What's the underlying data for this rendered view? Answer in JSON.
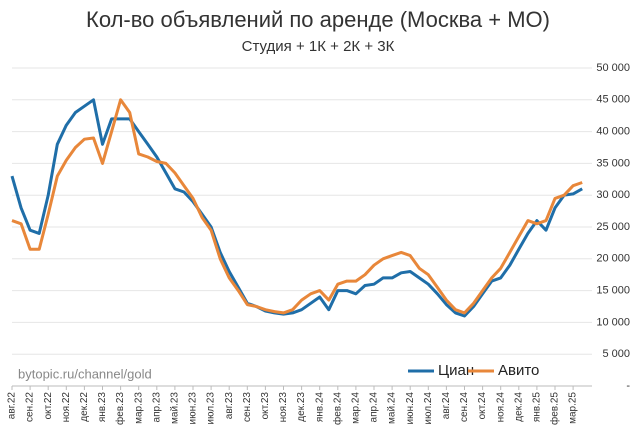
{
  "chart_data": {
    "type": "line",
    "title": "Кол-во объявлений по аренде (Москва + МО)",
    "subtitle": "Студия + 1К + 2К + 3К",
    "annotation": "bytopic.ru/channel/gold",
    "categories": [
      "авг.22",
      null,
      "сен.22",
      null,
      "окт.22",
      null,
      "ноя.22",
      null,
      "дек.22",
      null,
      "янв.23",
      null,
      "фев.23",
      null,
      "мар.23",
      null,
      "апр.23",
      null,
      "май.23",
      null,
      "июн.23",
      null,
      "июл.23",
      null,
      "авг.23",
      null,
      "сен.23",
      null,
      "окт.23",
      null,
      "ноя.23",
      null,
      "дек.23",
      null,
      "янв.24",
      null,
      "фев.24",
      null,
      "мар.24",
      null,
      "апр.24",
      null,
      "май.24",
      null,
      "июн.24",
      null,
      "июл.24",
      null,
      "авг.24",
      null,
      "сен.24",
      null,
      "окт.24",
      null,
      "ноя.24",
      null,
      "дек.24",
      null,
      "янв.25",
      null,
      "фев.25",
      null,
      "мар.25",
      null
    ],
    "series": [
      {
        "name": "Циан",
        "color": "#1f6ea8",
        "values": [
          33000,
          28000,
          24500,
          24000,
          30000,
          38000,
          41000,
          43000,
          44000,
          45000,
          38000,
          42000,
          42000,
          42000,
          40000,
          38000,
          36000,
          33500,
          31000,
          30500,
          29000,
          27000,
          25000,
          21000,
          18000,
          15500,
          13000,
          12500,
          11800,
          11500,
          11300,
          11500,
          12000,
          13000,
          14000,
          12000,
          15000,
          15000,
          14500,
          15800,
          16000,
          17000,
          17000,
          17800,
          18000,
          17000,
          16000,
          14500,
          12800,
          11500,
          11000,
          12500,
          14500,
          16500,
          17000,
          19000,
          21500,
          24000,
          26000,
          24500,
          28000,
          30000,
          30200,
          31000
        ]
      },
      {
        "name": "Авито",
        "color": "#e8873a",
        "values": [
          26000,
          25500,
          21500,
          21500,
          27000,
          33000,
          35500,
          37500,
          38800,
          39000,
          35000,
          40000,
          45000,
          43000,
          36500,
          36000,
          35300,
          35000,
          33500,
          31500,
          29500,
          26500,
          24500,
          20000,
          17000,
          15000,
          12800,
          12500,
          12000,
          11700,
          11500,
          12000,
          13500,
          14500,
          15000,
          13500,
          16000,
          16500,
          16500,
          17500,
          19000,
          20000,
          20500,
          21000,
          20500,
          18500,
          17500,
          15500,
          13500,
          12000,
          11500,
          13000,
          15000,
          17000,
          18500,
          21000,
          23500,
          26000,
          25500,
          26000,
          29500,
          30000,
          31500,
          32000
        ]
      }
    ],
    "ylim": [
      0,
      50000
    ],
    "yticks": [
      {
        "value": 0,
        "label": "-"
      },
      {
        "value": 5000,
        "label": "5 000"
      },
      {
        "value": 10000,
        "label": "10 000"
      },
      {
        "value": 15000,
        "label": "15 000"
      },
      {
        "value": 20000,
        "label": "20 000"
      },
      {
        "value": 25000,
        "label": "25 000"
      },
      {
        "value": 30000,
        "label": "30 000"
      },
      {
        "value": 35000,
        "label": "35 000"
      },
      {
        "value": 40000,
        "label": "40 000"
      },
      {
        "value": 45000,
        "label": "45 000"
      },
      {
        "value": 50000,
        "label": "50 000"
      }
    ],
    "grid": true,
    "legend": "bottom-right"
  }
}
